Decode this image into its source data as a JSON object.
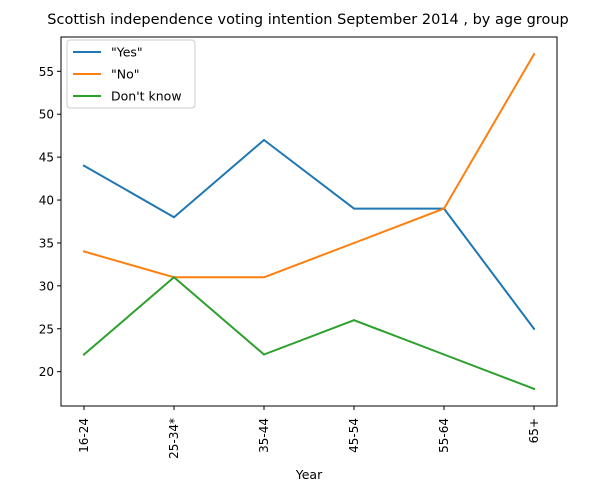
{
  "chart_data": {
    "type": "line",
    "title": "Scottish independence voting intention September 2014 , by age group",
    "xlabel": "Year",
    "ylabel": "",
    "categories": [
      "16-24",
      "25-34*",
      "35-44",
      "45-54",
      "55-64",
      "65+"
    ],
    "ylim": [
      16,
      59
    ],
    "yticks": [
      20,
      25,
      30,
      35,
      40,
      45,
      50,
      55
    ],
    "grid": false,
    "legend_position": "top-left",
    "series": [
      {
        "name": "\"Yes\"",
        "color": "#1f77b4",
        "values": [
          44,
          38,
          47,
          39,
          39,
          25
        ]
      },
      {
        "name": "\"No\"",
        "color": "#ff7f0e",
        "values": [
          34,
          31,
          31,
          35,
          39,
          57
        ]
      },
      {
        "name": "Don't know",
        "color": "#2ca02c",
        "values": [
          22,
          31,
          22,
          26,
          22,
          18
        ]
      }
    ]
  }
}
